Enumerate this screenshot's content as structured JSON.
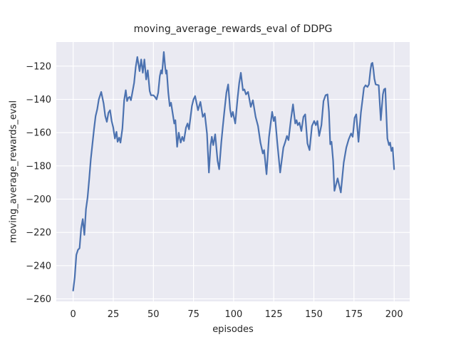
{
  "figure": {
    "background": "#ffffff"
  },
  "chart_data": {
    "type": "line",
    "title": "moving_average_rewards_eval of DDPG",
    "xlabel": "episodes",
    "ylabel": "moving_average_rewards_eval",
    "xlim": [
      -10.5,
      209.7
    ],
    "ylim": [
      -261.5,
      -105.5
    ],
    "xticks": [
      0,
      25,
      50,
      75,
      100,
      125,
      150,
      175,
      200
    ],
    "yticks": [
      -260,
      -240,
      -220,
      -200,
      -180,
      -160,
      -140,
      -120
    ],
    "grid": true,
    "legend_shown": false,
    "style": {
      "plot_bg": "#eaeaf2",
      "grid_color": "#ffffff",
      "line_color": "#4c72b0",
      "text_color": "#262626",
      "tick_color": "#262626",
      "line_width": 2.2
    },
    "series": [
      {
        "name": "moving_average_rewards_eval",
        "points": [
          [
            0,
            -255
          ],
          [
            1,
            -247
          ],
          [
            2,
            -233.5
          ],
          [
            3,
            -230.5
          ],
          [
            4,
            -229.5
          ],
          [
            5,
            -217.5
          ],
          [
            6,
            -212
          ],
          [
            7,
            -221.5
          ],
          [
            8,
            -206
          ],
          [
            9,
            -199
          ],
          [
            10,
            -188
          ],
          [
            11,
            -176
          ],
          [
            12,
            -167
          ],
          [
            13,
            -158
          ],
          [
            14,
            -150
          ],
          [
            15,
            -146
          ],
          [
            16,
            -140
          ],
          [
            17.5,
            -135.5
          ],
          [
            19,
            -142.5
          ],
          [
            20,
            -150
          ],
          [
            21,
            -153.5
          ],
          [
            22,
            -148
          ],
          [
            23,
            -146.5
          ],
          [
            24,
            -153
          ],
          [
            25,
            -157
          ],
          [
            26,
            -163.5
          ],
          [
            27,
            -159.5
          ],
          [
            27.7,
            -165.5
          ],
          [
            28.7,
            -163
          ],
          [
            29.5,
            -166
          ],
          [
            30.7,
            -157.5
          ],
          [
            31.8,
            -140.5
          ],
          [
            32.8,
            -134.5
          ],
          [
            33.6,
            -141
          ],
          [
            34.4,
            -139
          ],
          [
            35.2,
            -138.5
          ],
          [
            36,
            -140.5
          ],
          [
            36.6,
            -137.5
          ],
          [
            38,
            -130
          ],
          [
            39,
            -120.5
          ],
          [
            40,
            -114.5
          ],
          [
            41.4,
            -123
          ],
          [
            42.4,
            -116
          ],
          [
            43.4,
            -124
          ],
          [
            44.4,
            -116
          ],
          [
            45.5,
            -128
          ],
          [
            46.5,
            -122.5
          ],
          [
            47.7,
            -135
          ],
          [
            48.5,
            -137.5
          ],
          [
            50,
            -137.5
          ],
          [
            51,
            -138.5
          ],
          [
            52,
            -140
          ],
          [
            53,
            -136
          ],
          [
            54,
            -126
          ],
          [
            54.8,
            -122.5
          ],
          [
            55.4,
            -124.5
          ],
          [
            56.5,
            -111.5
          ],
          [
            57.4,
            -121
          ],
          [
            57.9,
            -124.5
          ],
          [
            58.3,
            -122.5
          ],
          [
            59.3,
            -136
          ],
          [
            60.2,
            -144
          ],
          [
            61,
            -142
          ],
          [
            63,
            -154.5
          ],
          [
            63.7,
            -152.5
          ],
          [
            64.8,
            -168.5
          ],
          [
            65.8,
            -160
          ],
          [
            67,
            -166
          ],
          [
            68,
            -162.5
          ],
          [
            69,
            -165
          ],
          [
            70.3,
            -157
          ],
          [
            71.3,
            -154.5
          ],
          [
            72.2,
            -158
          ],
          [
            74,
            -144
          ],
          [
            75,
            -140
          ],
          [
            76,
            -138
          ],
          [
            77.8,
            -146.5
          ],
          [
            79.3,
            -141.5
          ],
          [
            80.8,
            -150.5
          ],
          [
            82,
            -148.5
          ],
          [
            83.4,
            -160.5
          ],
          [
            84.6,
            -184
          ],
          [
            85.6,
            -168
          ],
          [
            86.4,
            -162.5
          ],
          [
            87.3,
            -167.5
          ],
          [
            88.5,
            -161
          ],
          [
            90,
            -177
          ],
          [
            91,
            -182
          ],
          [
            92.3,
            -166
          ],
          [
            93.2,
            -157
          ],
          [
            94.2,
            -147.5
          ],
          [
            95.5,
            -136
          ],
          [
            96.6,
            -131
          ],
          [
            97.8,
            -146
          ],
          [
            98.6,
            -150.5
          ],
          [
            99.5,
            -147.5
          ],
          [
            101,
            -154.5
          ],
          [
            102.5,
            -139
          ],
          [
            103.5,
            -130
          ],
          [
            104.5,
            -124
          ],
          [
            105.8,
            -134.5
          ],
          [
            106.7,
            -134
          ],
          [
            107.7,
            -137
          ],
          [
            109,
            -135.5
          ],
          [
            110.7,
            -144.5
          ],
          [
            112,
            -140.5
          ],
          [
            113.7,
            -150.5
          ],
          [
            115.2,
            -156
          ],
          [
            116.7,
            -166
          ],
          [
            118.2,
            -172.5
          ],
          [
            119,
            -170.5
          ],
          [
            120.5,
            -185
          ],
          [
            122,
            -163
          ],
          [
            123,
            -155
          ],
          [
            124,
            -147.5
          ],
          [
            125,
            -153
          ],
          [
            125.8,
            -150.5
          ],
          [
            127.2,
            -166
          ],
          [
            129,
            -184
          ],
          [
            131,
            -169
          ],
          [
            132.2,
            -165.5
          ],
          [
            133.2,
            -162
          ],
          [
            134.2,
            -164.5
          ],
          [
            135.7,
            -152
          ],
          [
            137,
            -143
          ],
          [
            138.4,
            -154.5
          ],
          [
            139.2,
            -152.5
          ],
          [
            140,
            -155.5
          ],
          [
            141,
            -154
          ],
          [
            142.2,
            -159
          ],
          [
            143.5,
            -150.5
          ],
          [
            144.6,
            -149
          ],
          [
            146,
            -166.5
          ],
          [
            147.3,
            -170.5
          ],
          [
            148.8,
            -156
          ],
          [
            150.2,
            -153
          ],
          [
            151.2,
            -155.5
          ],
          [
            152.2,
            -153
          ],
          [
            153.3,
            -162
          ],
          [
            154.7,
            -155.5
          ],
          [
            156,
            -141
          ],
          [
            157.3,
            -137.5
          ],
          [
            158.5,
            -137
          ],
          [
            159.4,
            -147.5
          ],
          [
            160.2,
            -167
          ],
          [
            161,
            -165.5
          ],
          [
            162,
            -177
          ],
          [
            162.8,
            -195
          ],
          [
            164.8,
            -187.5
          ],
          [
            166.8,
            -196
          ],
          [
            168.6,
            -178
          ],
          [
            170.2,
            -169
          ],
          [
            171.7,
            -164
          ],
          [
            173.2,
            -160.5
          ],
          [
            174.2,
            -162.5
          ],
          [
            175.4,
            -151
          ],
          [
            176.4,
            -149
          ],
          [
            177.8,
            -165.5
          ],
          [
            179.3,
            -148
          ],
          [
            180.2,
            -141
          ],
          [
            181.2,
            -133
          ],
          [
            182.2,
            -131.5
          ],
          [
            183.4,
            -132.5
          ],
          [
            184.3,
            -131
          ],
          [
            185.3,
            -122
          ],
          [
            185.9,
            -118.5
          ],
          [
            186.5,
            -118
          ],
          [
            187.1,
            -122
          ],
          [
            187.7,
            -127.5
          ],
          [
            188.5,
            -131
          ],
          [
            190.4,
            -131.5
          ],
          [
            191.7,
            -152.5
          ],
          [
            193,
            -137
          ],
          [
            193.7,
            -134
          ],
          [
            194.5,
            -133.5
          ],
          [
            195.2,
            -150
          ],
          [
            195.8,
            -163.5
          ],
          [
            196.8,
            -167.5
          ],
          [
            197.5,
            -166
          ],
          [
            198.3,
            -171
          ],
          [
            199.1,
            -169
          ],
          [
            200,
            -182
          ]
        ]
      }
    ]
  }
}
